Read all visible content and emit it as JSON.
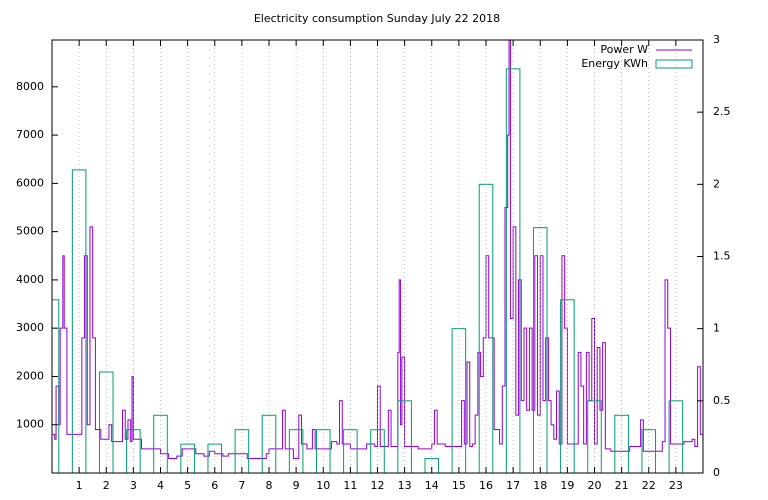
{
  "chart_data": {
    "type": "line",
    "title": "Electricity consumption Sunday July 22 2018",
    "xlim": [
      0,
      24
    ],
    "xticks": [
      1,
      2,
      3,
      4,
      5,
      6,
      7,
      8,
      9,
      10,
      11,
      12,
      13,
      14,
      15,
      16,
      17,
      18,
      19,
      20,
      21,
      22,
      23
    ],
    "ylim": [
      0,
      8970
    ],
    "yticks": [
      1000,
      2000,
      3000,
      4000,
      5000,
      6000,
      7000,
      8000
    ],
    "y2lim": [
      0,
      3
    ],
    "y2ticks": [
      0,
      {
        "value": 0.5,
        "label": "0.5"
      },
      1,
      {
        "value": 1.5,
        "label": "1.5"
      },
      2,
      {
        "value": 2.5,
        "label": "2.5"
      },
      3
    ],
    "xgrid": true,
    "legend": "top-right",
    "series": [
      {
        "name": "Power W",
        "color": "#9400d3",
        "style": "steps",
        "x": [
          0,
          0.1,
          0.15,
          0.25,
          0.3,
          0.4,
          0.45,
          0.55,
          0.8,
          1,
          1.1,
          1.2,
          1.3,
          1.4,
          1.5,
          1.6,
          1.8,
          2,
          2.1,
          2.2,
          2.5,
          2.6,
          2.7,
          2.8,
          2.9,
          2.95,
          3,
          3.3,
          3.8,
          4,
          4.3,
          4.6,
          4.8,
          5,
          5.3,
          5.6,
          5.8,
          6,
          6.3,
          6.5,
          6.8,
          7,
          7.2,
          7.6,
          7.9,
          8,
          8.3,
          8.5,
          8.6,
          8.9,
          9,
          9.1,
          9.2,
          9.4,
          9.6,
          9.7,
          10,
          10.3,
          10.5,
          10.6,
          10.7,
          11,
          11.4,
          11.6,
          11.9,
          12,
          12.1,
          12.3,
          12.4,
          12.5,
          12.7,
          12.75,
          12.8,
          12.85,
          12.9,
          13,
          13.5,
          13.8,
          14,
          14.1,
          14.2,
          14.5,
          15,
          15.1,
          15.2,
          15.3,
          15.4,
          15.5,
          15.6,
          15.7,
          15.8,
          15.9,
          16,
          16.1,
          16.3,
          16.5,
          16.6,
          16.7,
          16.8,
          16.85,
          16.9,
          17,
          17.1,
          17.2,
          17.3,
          17.4,
          17.5,
          17.6,
          17.7,
          17.8,
          17.9,
          18,
          18.1,
          18.2,
          18.3,
          18.4,
          18.5,
          18.6,
          18.7,
          18.8,
          18.9,
          19,
          19.3,
          19.4,
          19.5,
          19.6,
          19.7,
          19.8,
          19.9,
          20,
          20.1,
          20.2,
          20.3,
          20.4,
          20.6,
          21,
          21.3,
          21.6,
          21.7,
          21.8,
          22.2,
          22.5,
          22.6,
          22.7,
          22.8,
          23,
          23.3,
          23.6,
          23.7,
          23.8,
          23.9,
          24
        ],
        "values": [
          800,
          700,
          1800,
          1000,
          3000,
          4500,
          3000,
          800,
          800,
          800,
          2800,
          4500,
          1000,
          5100,
          2800,
          900,
          700,
          700,
          1000,
          650,
          650,
          1300,
          700,
          1100,
          650,
          2000,
          700,
          500,
          500,
          400,
          300,
          350,
          500,
          500,
          400,
          350,
          450,
          400,
          350,
          400,
          400,
          400,
          300,
          300,
          400,
          500,
          500,
          1300,
          500,
          300,
          300,
          1200,
          600,
          500,
          900,
          500,
          500,
          650,
          600,
          1500,
          600,
          500,
          500,
          600,
          550,
          1800,
          550,
          550,
          1300,
          550,
          550,
          2500,
          4000,
          1000,
          2400,
          550,
          500,
          500,
          600,
          1300,
          600,
          550,
          550,
          1500,
          600,
          2300,
          550,
          600,
          1200,
          2500,
          2000,
          2800,
          4500,
          2800,
          900,
          600,
          1800,
          5500,
          7000,
          9000,
          3200,
          5100,
          1200,
          4000,
          1500,
          3000,
          1300,
          3000,
          1300,
          4500,
          1200,
          4500,
          1500,
          2800,
          1500,
          1000,
          700,
          1700,
          600,
          4500,
          3000,
          600,
          600,
          2500,
          1800,
          600,
          2500,
          1500,
          3200,
          600,
          2600,
          1300,
          2700,
          500,
          450,
          450,
          550,
          550,
          1100,
          450,
          450,
          650,
          4000,
          3000,
          600,
          600,
          650,
          700,
          550,
          2200,
          800,
          600
        ]
      },
      {
        "name": "Energy KWh",
        "color": "#009e73",
        "style": "boxes",
        "axis": "y2",
        "x": [
          0,
          1,
          2,
          3,
          4,
          5,
          6,
          7,
          8,
          9,
          10,
          11,
          12,
          13,
          14,
          15,
          16,
          17,
          18,
          19,
          20,
          21,
          22,
          23
        ],
        "values": [
          1.2,
          2.1,
          0.7,
          0.3,
          0.4,
          0.2,
          0.2,
          0.3,
          0.4,
          0.3,
          0.3,
          0.3,
          0.3,
          0.5,
          0.1,
          1.0,
          2.0,
          2.8,
          1.7,
          1.2,
          0.5,
          0.4,
          0.3,
          0.5
        ]
      }
    ]
  }
}
